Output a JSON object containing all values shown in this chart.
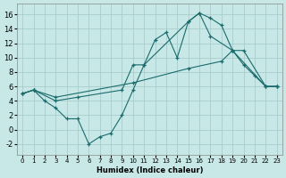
{
  "xlabel": "Humidex (Indice chaleur)",
  "xlim": [
    -0.5,
    23.5
  ],
  "ylim": [
    -3.5,
    17.5
  ],
  "xticks": [
    0,
    1,
    2,
    3,
    4,
    5,
    6,
    7,
    8,
    9,
    10,
    11,
    12,
    13,
    14,
    15,
    16,
    17,
    18,
    19,
    20,
    21,
    22,
    23
  ],
  "yticks": [
    -2,
    0,
    2,
    4,
    6,
    8,
    10,
    12,
    14,
    16
  ],
  "bg_color": "#c8e8e8",
  "line_color": "#1a6b6b",
  "grid_color": "#a8cccc",
  "line1_x": [
    0,
    1,
    2,
    3,
    4,
    5,
    6,
    7,
    8,
    9,
    10,
    11,
    12,
    13,
    14,
    15,
    16,
    17,
    18,
    19,
    20,
    21,
    22,
    23
  ],
  "line1_y": [
    5.0,
    5.5,
    4.0,
    3.0,
    1.5,
    1.5,
    -2.0,
    -1.0,
    -0.5,
    2.0,
    5.5,
    9.0,
    12.5,
    13.5,
    10.0,
    15.0,
    16.2,
    15.5,
    14.5,
    11.0,
    9.0,
    7.5,
    6.0,
    6.0
  ],
  "line2_x": [
    0,
    1,
    3,
    5,
    9,
    10,
    11,
    15,
    16,
    17,
    19,
    20,
    22,
    23
  ],
  "line2_y": [
    5.0,
    5.5,
    4.0,
    4.5,
    5.5,
    9.0,
    9.0,
    15.0,
    16.2,
    13.0,
    11.0,
    11.0,
    6.0,
    6.0
  ],
  "line3_x": [
    0,
    1,
    3,
    10,
    15,
    18,
    19,
    22,
    23
  ],
  "line3_y": [
    5.0,
    5.5,
    4.5,
    6.5,
    8.5,
    9.5,
    11.0,
    6.0,
    6.0
  ]
}
